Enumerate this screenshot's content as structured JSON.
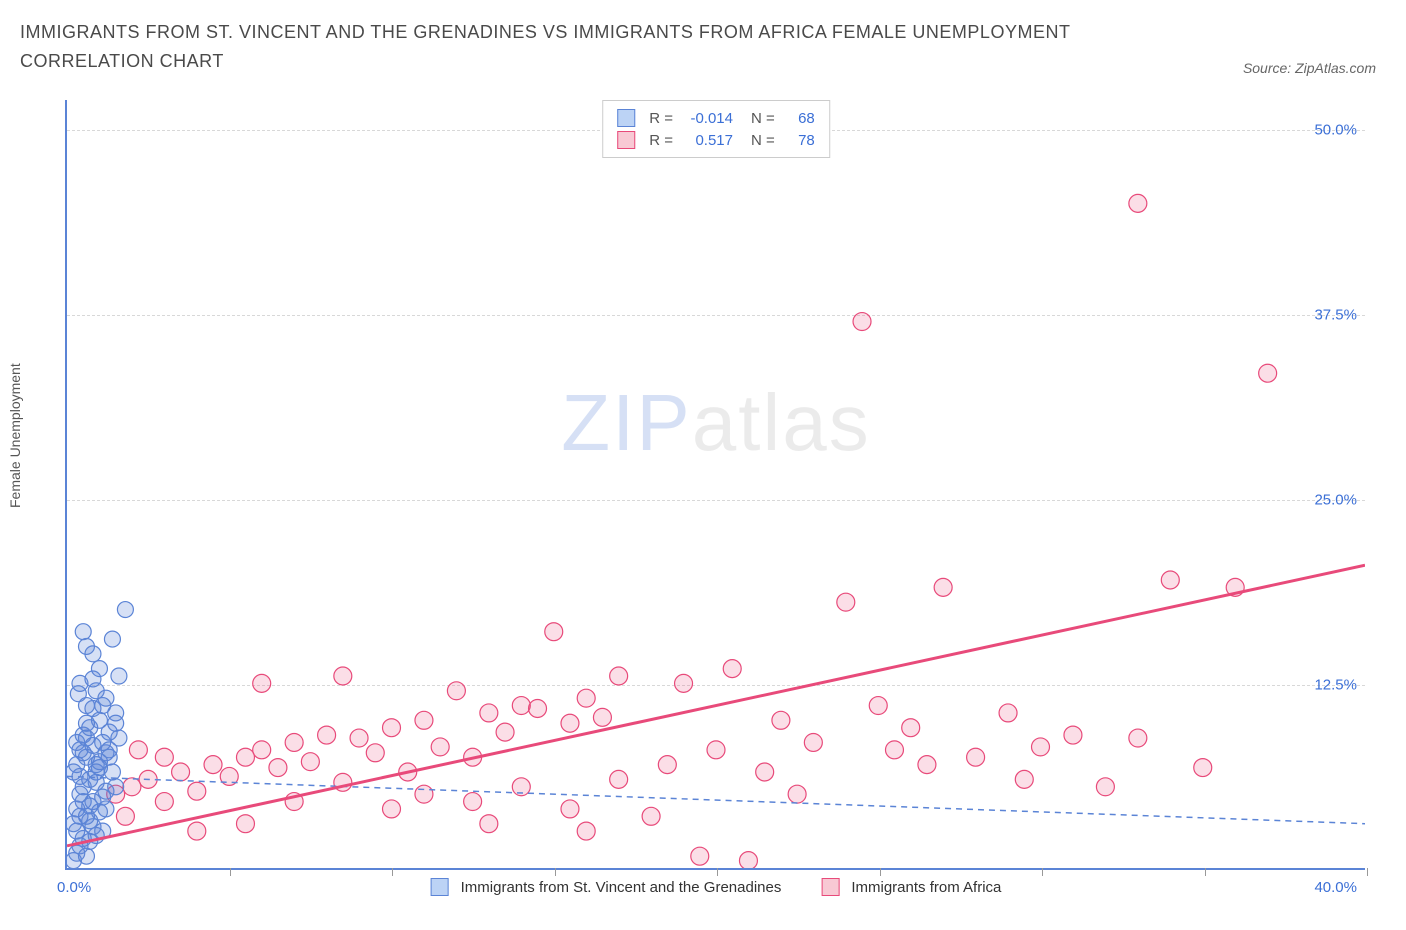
{
  "header": {
    "title": "IMMIGRANTS FROM ST. VINCENT AND THE GRENADINES VS IMMIGRANTS FROM AFRICA FEMALE UNEMPLOYMENT CORRELATION CHART",
    "source": "Source: ZipAtlas.com"
  },
  "chart": {
    "type": "scatter",
    "y_label": "Female Unemployment",
    "x_min": 0.0,
    "x_max": 40.0,
    "y_min": 0.0,
    "y_max": 52.0,
    "x_tick_labels": {
      "min": "0.0%",
      "max": "40.0%"
    },
    "y_ticks": [
      12.5,
      25.0,
      37.5,
      50.0
    ],
    "y_tick_labels": [
      "12.5%",
      "25.0%",
      "37.5%",
      "50.0%"
    ],
    "x_vticks": [
      5,
      10,
      15,
      20,
      25,
      30,
      35,
      40
    ],
    "grid_color": "#d8d8d8",
    "axis_color": "#5b84d6",
    "background_color": "#ffffff",
    "watermark": {
      "part1": "ZIP",
      "part2": "atlas"
    },
    "legend_top": {
      "series": [
        {
          "swatch_fill": "#bcd3f5",
          "swatch_border": "#5b84d6",
          "r_label": "R =",
          "r_val": "-0.014",
          "n_label": "N =",
          "n_val": "68"
        },
        {
          "swatch_fill": "#f8c9d4",
          "swatch_border": "#e84a7a",
          "r_label": "R =",
          "r_val": "0.517",
          "n_label": "N =",
          "n_val": "78"
        }
      ]
    },
    "legend_bottom": {
      "items": [
        {
          "swatch_fill": "#bcd3f5",
          "swatch_border": "#5b84d6",
          "label": "Immigrants from St. Vincent and the Grenadines"
        },
        {
          "swatch_fill": "#f8c9d4",
          "swatch_border": "#e84a7a",
          "label": "Immigrants from Africa"
        }
      ]
    },
    "series_a": {
      "name": "St. Vincent and the Grenadines",
      "color_fill": "rgba(91,132,214,0.25)",
      "color_stroke": "#5b84d6",
      "marker_radius": 8,
      "trend": {
        "x1": 0,
        "y1": 6.2,
        "x2": 40,
        "y2": 3.0,
        "stroke": "#5b84d6",
        "width": 1.5,
        "dash": "6,5"
      },
      "points": [
        [
          0.2,
          0.5
        ],
        [
          0.3,
          1.0
        ],
        [
          0.4,
          1.5
        ],
        [
          0.5,
          2.0
        ],
        [
          0.2,
          3.0
        ],
        [
          0.6,
          3.5
        ],
        [
          0.3,
          4.0
        ],
        [
          0.8,
          4.5
        ],
        [
          0.4,
          5.0
        ],
        [
          0.5,
          5.5
        ],
        [
          0.7,
          6.0
        ],
        [
          0.9,
          6.5
        ],
        [
          0.3,
          7.0
        ],
        [
          1.0,
          7.2
        ],
        [
          0.6,
          7.5
        ],
        [
          1.2,
          7.8
        ],
        [
          0.4,
          8.0
        ],
        [
          0.8,
          8.3
        ],
        [
          1.1,
          8.5
        ],
        [
          0.5,
          9.0
        ],
        [
          1.3,
          9.2
        ],
        [
          0.7,
          9.5
        ],
        [
          1.0,
          10.0
        ],
        [
          1.5,
          10.5
        ],
        [
          0.6,
          11.0
        ],
        [
          1.2,
          11.5
        ],
        [
          0.9,
          12.0
        ],
        [
          0.8,
          12.8
        ],
        [
          1.6,
          13.0
        ],
        [
          1.0,
          13.5
        ],
        [
          0.8,
          14.5
        ],
        [
          0.6,
          15.0
        ],
        [
          1.4,
          15.5
        ],
        [
          0.5,
          16.0
        ],
        [
          1.8,
          17.5
        ],
        [
          0.3,
          2.5
        ],
        [
          0.7,
          3.2
        ],
        [
          1.1,
          4.8
        ],
        [
          0.4,
          6.2
        ],
        [
          0.9,
          7.0
        ],
        [
          1.3,
          8.0
        ],
        [
          0.6,
          8.8
        ],
        [
          1.5,
          9.8
        ],
        [
          0.8,
          10.8
        ],
        [
          1.0,
          6.8
        ],
        [
          0.5,
          7.8
        ],
        [
          1.2,
          5.2
        ],
        [
          0.7,
          4.2
        ],
        [
          1.4,
          6.5
        ],
        [
          0.9,
          5.8
        ],
        [
          0.3,
          8.5
        ],
        [
          0.6,
          9.8
        ],
        [
          1.1,
          11.0
        ],
        [
          0.4,
          12.5
        ],
        [
          0.8,
          2.8
        ],
        [
          1.0,
          3.8
        ],
        [
          0.5,
          4.5
        ],
        [
          1.3,
          7.5
        ],
        [
          0.7,
          1.8
        ],
        [
          0.2,
          6.5
        ],
        [
          1.6,
          8.8
        ],
        [
          0.9,
          2.2
        ],
        [
          1.2,
          4.0
        ],
        [
          0.6,
          0.8
        ],
        [
          1.5,
          5.5
        ],
        [
          0.4,
          3.5
        ],
        [
          1.1,
          2.5
        ],
        [
          0.35,
          11.8
        ]
      ]
    },
    "series_b": {
      "name": "Africa",
      "color_fill": "rgba(232,74,122,0.18)",
      "color_stroke": "#e84a7a",
      "marker_radius": 9,
      "trend": {
        "x1": 0,
        "y1": 1.5,
        "x2": 40,
        "y2": 20.5,
        "stroke": "#e84a7a",
        "width": 3,
        "dash": ""
      },
      "points": [
        [
          1.5,
          5.0
        ],
        [
          2.0,
          5.5
        ],
        [
          2.5,
          6.0
        ],
        [
          3.0,
          4.5
        ],
        [
          3.5,
          6.5
        ],
        [
          4.0,
          5.2
        ],
        [
          4.5,
          7.0
        ],
        [
          5.0,
          6.2
        ],
        [
          5.5,
          7.5
        ],
        [
          6.0,
          8.0
        ],
        [
          6.5,
          6.8
        ],
        [
          7.0,
          8.5
        ],
        [
          7.5,
          7.2
        ],
        [
          8.0,
          9.0
        ],
        [
          8.5,
          5.8
        ],
        [
          9.0,
          8.8
        ],
        [
          9.5,
          7.8
        ],
        [
          10.0,
          9.5
        ],
        [
          10.5,
          6.5
        ],
        [
          11.0,
          10.0
        ],
        [
          11.5,
          8.2
        ],
        [
          12.0,
          12.0
        ],
        [
          12.5,
          7.5
        ],
        [
          13.0,
          10.5
        ],
        [
          13.5,
          9.2
        ],
        [
          14.0,
          11.0
        ],
        [
          14.5,
          10.8
        ],
        [
          15.0,
          16.0
        ],
        [
          15.5,
          9.8
        ],
        [
          16.0,
          11.5
        ],
        [
          16.5,
          10.2
        ],
        [
          17.0,
          13.0
        ],
        [
          11.0,
          5.0
        ],
        [
          12.5,
          4.5
        ],
        [
          14.0,
          5.5
        ],
        [
          15.5,
          4.0
        ],
        [
          17.0,
          6.0
        ],
        [
          18.0,
          3.5
        ],
        [
          19.0,
          12.5
        ],
        [
          20.0,
          8.0
        ],
        [
          20.5,
          13.5
        ],
        [
          21.0,
          0.5
        ],
        [
          22.0,
          10.0
        ],
        [
          23.0,
          8.5
        ],
        [
          24.0,
          18.0
        ],
        [
          25.0,
          11.0
        ],
        [
          25.5,
          8.0
        ],
        [
          26.0,
          9.5
        ],
        [
          27.0,
          19.0
        ],
        [
          28.0,
          7.5
        ],
        [
          29.0,
          10.5
        ],
        [
          30.0,
          8.2
        ],
        [
          31.0,
          9.0
        ],
        [
          32.0,
          5.5
        ],
        [
          33.0,
          8.8
        ],
        [
          34.0,
          19.5
        ],
        [
          35.0,
          6.8
        ],
        [
          36.0,
          19.0
        ],
        [
          37.0,
          33.5
        ],
        [
          24.5,
          37.0
        ],
        [
          33.0,
          45.0
        ],
        [
          6.0,
          12.5
        ],
        [
          8.5,
          13.0
        ],
        [
          4.0,
          2.5
        ],
        [
          5.5,
          3.0
        ],
        [
          3.0,
          7.5
        ],
        [
          2.2,
          8.0
        ],
        [
          1.8,
          3.5
        ],
        [
          18.5,
          7.0
        ],
        [
          21.5,
          6.5
        ],
        [
          26.5,
          7.0
        ],
        [
          29.5,
          6.0
        ],
        [
          13.0,
          3.0
        ],
        [
          16.0,
          2.5
        ],
        [
          10.0,
          4.0
        ],
        [
          7.0,
          4.5
        ],
        [
          22.5,
          5.0
        ],
        [
          19.5,
          0.8
        ]
      ]
    }
  }
}
